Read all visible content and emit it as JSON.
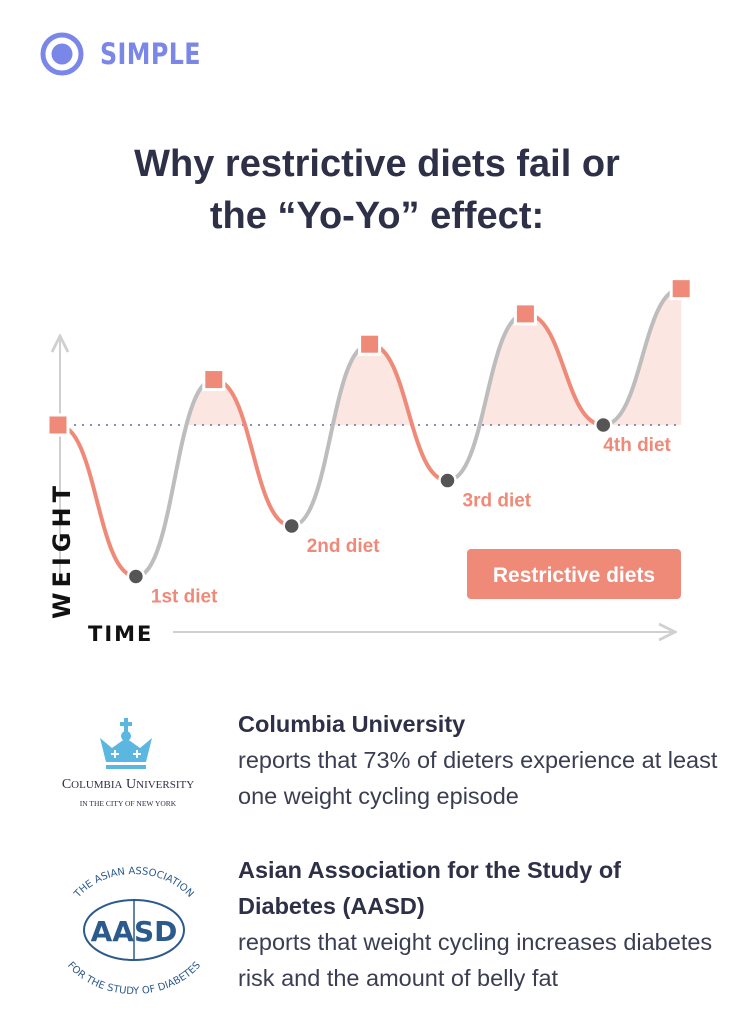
{
  "brand": {
    "name": "SIMPLE",
    "color": "#7b87e8"
  },
  "title": {
    "line1": "Why restrictive diets fail or",
    "line2": "the “Yo-Yo” effect:"
  },
  "chart_data": {
    "type": "line",
    "title": "Why restrictive diets fail or the “Yo-Yo” effect",
    "xlabel": "TIME",
    "ylabel": "WEIGHT",
    "baseline": 0,
    "x": [
      0,
      1,
      2,
      3,
      4,
      5,
      6,
      7,
      8
    ],
    "y": [
      0,
      -30,
      9,
      -20,
      16,
      -11,
      22,
      0,
      27
    ],
    "point_types": [
      "peak",
      "diet",
      "peak",
      "diet",
      "peak",
      "diet",
      "peak",
      "diet",
      "peak"
    ],
    "diet_labels": [
      "1st diet",
      "2nd diet",
      "3rd diet",
      "4th diet"
    ],
    "legend": "Restrictive diets",
    "legend_placement": "bottom-right",
    "colors": {
      "diet": "#ef8a78",
      "regain": "#bdbdbd",
      "fill": "#fbe6e2",
      "dot": "#555555",
      "baseline": "#8a8fb8",
      "axis": "#d0d0d0"
    }
  },
  "sources": [
    {
      "logo_text": "COLUMBIA UNIVERSITY",
      "logo_subtext": "IN THE CITY OF NEW YORK",
      "bold": "Columbia University",
      "text": " reports that 73% of dieters experience at least one weight cycling episode"
    },
    {
      "logo_text": "THE ASIAN ASSOCIATION FOR THE STUDY OF DIABETES",
      "logo_mark": "AASD",
      "bold": "Asian Association for the Study of Diabetes (AASD)",
      "text": " reports that weight cycling increases diabetes risk and the amount of belly fat"
    }
  ]
}
